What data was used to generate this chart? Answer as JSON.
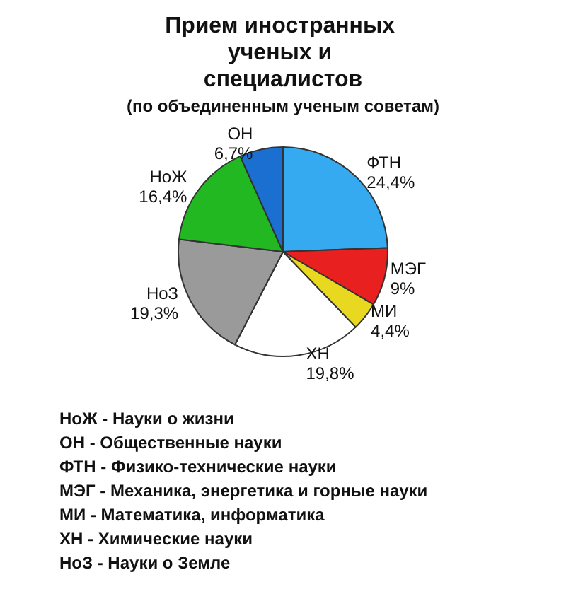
{
  "chart_data": {
    "type": "pie",
    "title": "Прием иностранных ученых и специалистов",
    "subtitle": "(по объединенным ученым советам)",
    "categories": [
      "ФТН",
      "МЭГ",
      "МИ",
      "ХН",
      "НоЗ",
      "НоЖ",
      "ОН"
    ],
    "values": [
      24.4,
      9,
      4.4,
      19.8,
      19.3,
      16.4,
      6.7
    ],
    "value_labels": [
      "24,4%",
      "9%",
      "4,4%",
      "19,8%",
      "19,3%",
      "16,4%",
      "6,7%"
    ],
    "colors": [
      "#35aaf0",
      "#e82020",
      "#e8d820",
      "#ffffff",
      "#9a9a9a",
      "#22b822",
      "#1a6fd0"
    ],
    "legend": false,
    "annotations": [
      "НоЖ - Науки о жизни",
      "ОН - Общественные науки",
      "ФТН - Физико-технические науки",
      "МЭГ - Механика, энергетика и горные науки",
      "МИ - Математика, информатика",
      "ХН - Химические науки",
      "НоЗ - Науки о Земле"
    ]
  }
}
